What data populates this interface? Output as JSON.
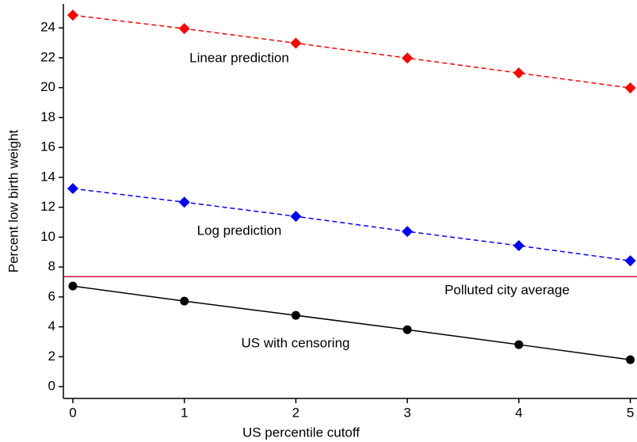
{
  "chart_data": {
    "type": "line",
    "x_label": "US percentile cutoff",
    "y_label": "Percent low birth weight",
    "x": [
      0,
      1,
      2,
      3,
      4,
      5
    ],
    "series": [
      {
        "name": "Linear prediction",
        "color": "#ff0000",
        "marker": "diamond",
        "dashed": true,
        "values": [
          24.85,
          23.95,
          22.98,
          21.98,
          20.98,
          19.98
        ]
      },
      {
        "name": "Log prediction",
        "color": "#0000ff",
        "marker": "diamond",
        "dashed": true,
        "values": [
          13.25,
          12.34,
          11.39,
          10.38,
          9.43,
          8.42
        ]
      },
      {
        "name": "US with censoring",
        "color": "#000000",
        "marker": "circle",
        "dashed": false,
        "values": [
          6.73,
          5.72,
          4.77,
          3.81,
          2.81,
          1.8
        ]
      }
    ],
    "hline": {
      "label": "Polluted city average",
      "value": 7.36,
      "color": "#c8103e"
    },
    "xlim": [
      -0.085,
      5.06
    ],
    "ylim": [
      -0.79,
      25.6
    ],
    "xticks": [
      0,
      1,
      2,
      3,
      4,
      5
    ],
    "yticks": [
      0,
      2,
      4,
      6,
      8,
      10,
      12,
      14,
      16,
      18,
      20,
      22,
      24
    ],
    "grid": false
  }
}
